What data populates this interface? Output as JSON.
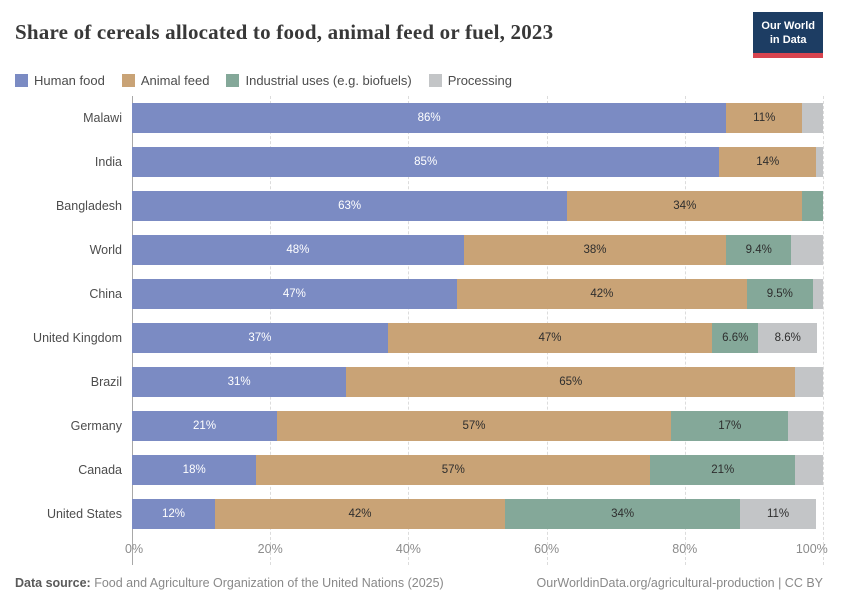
{
  "header": {
    "title": "Share of cereals allocated to food, animal feed or fuel, 2023",
    "logo_line1": "Our World",
    "logo_line2": "in Data",
    "logo_bg": "#1d3d63",
    "logo_accent": "#d8444f"
  },
  "legend": {
    "items": [
      "Human food",
      "Animal feed",
      "Industrial uses (e.g. biofuels)",
      "Processing"
    ]
  },
  "colors": {
    "human_food": "#7b8bc3",
    "animal_feed": "#c9a376",
    "industrial": "#84a899",
    "processing": "#c3c5c7",
    "grid": "#dcdcdc",
    "axis_line": "#a8a8a8"
  },
  "chart_data": {
    "type": "bar",
    "orientation": "horizontal",
    "stacked": true,
    "title": "Share of cereals allocated to food, animal feed or fuel, 2023",
    "xlim": [
      0,
      100
    ],
    "x_ticks": [
      0,
      20,
      40,
      60,
      80,
      100
    ],
    "x_tick_labels": [
      "0%",
      "20%",
      "40%",
      "60%",
      "80%",
      "100%"
    ],
    "grid": "dashed-vertical",
    "legend_position": "top",
    "series_names": [
      "Human food",
      "Animal feed",
      "Industrial uses (e.g. biofuels)",
      "Processing"
    ],
    "series_colors": [
      "#7b8bc3",
      "#c9a376",
      "#84a899",
      "#c3c5c7"
    ],
    "categories": [
      "Malawi",
      "India",
      "Bangladesh",
      "World",
      "China",
      "United Kingdom",
      "Brazil",
      "Germany",
      "Canada",
      "United States"
    ],
    "rows": [
      {
        "category": "Malawi",
        "values": [
          86,
          11,
          0,
          3
        ],
        "labels": [
          "86%",
          "11%",
          "",
          ""
        ]
      },
      {
        "category": "India",
        "values": [
          85,
          14,
          0,
          1
        ],
        "labels": [
          "85%",
          "14%",
          "",
          ""
        ]
      },
      {
        "category": "Bangladesh",
        "values": [
          63,
          34,
          3,
          0
        ],
        "labels": [
          "63%",
          "34%",
          "",
          ""
        ]
      },
      {
        "category": "World",
        "values": [
          48,
          38,
          9.4,
          4.6
        ],
        "labels": [
          "48%",
          "38%",
          "9.4%",
          ""
        ]
      },
      {
        "category": "China",
        "values": [
          47,
          42,
          9.5,
          1.5
        ],
        "labels": [
          "47%",
          "42%",
          "9.5%",
          ""
        ]
      },
      {
        "category": "United Kingdom",
        "values": [
          37,
          47,
          6.6,
          8.6
        ],
        "labels": [
          "37%",
          "47%",
          "6.6%",
          "8.6%"
        ]
      },
      {
        "category": "Brazil",
        "values": [
          31,
          65,
          0,
          4
        ],
        "labels": [
          "31%",
          "65%",
          "",
          ""
        ]
      },
      {
        "category": "Germany",
        "values": [
          21,
          57,
          17,
          5
        ],
        "labels": [
          "21%",
          "57%",
          "17%",
          ""
        ]
      },
      {
        "category": "Canada",
        "values": [
          18,
          57,
          21,
          4
        ],
        "labels": [
          "18%",
          "57%",
          "21%",
          ""
        ]
      },
      {
        "category": "United States",
        "values": [
          12,
          42,
          34,
          11
        ],
        "labels": [
          "12%",
          "42%",
          "34%",
          "11%"
        ]
      }
    ]
  },
  "footer": {
    "source_label": "Data source:",
    "source_text": " Food and Agriculture Organization of the United Nations (2025)",
    "right_text": "OurWorldinData.org/agricultural-production | CC BY"
  }
}
